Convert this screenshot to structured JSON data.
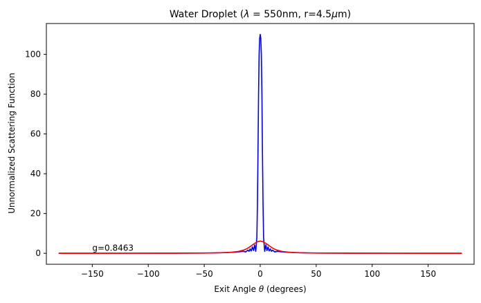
{
  "chart_data": {
    "type": "line",
    "title": "Water Droplet (λ = 550nm, r=4.5μm)",
    "title_parts": {
      "prefix": "Water Droplet (",
      "lambda_symbol": "λ",
      "lambda_value": " = 550nm, r=4.5",
      "mu_symbol": "μ",
      "suffix": "m)"
    },
    "xlabel": "Exit Angle θ (degrees)",
    "xlabel_parts": {
      "prefix": "Exit Angle ",
      "theta_symbol": "θ",
      "suffix": " (degrees)"
    },
    "ylabel": "Unnormalized Scattering Function",
    "xlim": [
      -191,
      191
    ],
    "ylim": [
      -5.5,
      115.5
    ],
    "xticks": [
      -150,
      -100,
      -50,
      0,
      50,
      100,
      150
    ],
    "xtick_labels": [
      "−150",
      "−100",
      "−50",
      "0",
      "50",
      "100",
      "150"
    ],
    "yticks": [
      0,
      20,
      40,
      60,
      80,
      100
    ],
    "ytick_labels": [
      "0",
      "20",
      "40",
      "60",
      "80",
      "100"
    ],
    "grid": false,
    "annotation": {
      "text": "g=0.8463",
      "x": -150,
      "y": 1.2
    },
    "series": [
      {
        "color": "#0000ff",
        "x": [
          -180,
          -150,
          -120,
          -90,
          -60,
          -45,
          -35,
          -28,
          -22,
          -18,
          -15,
          -13,
          -11,
          -10,
          -9,
          -8,
          -7,
          -6,
          -5,
          -4,
          -3,
          -2.5,
          -2,
          -1.5,
          -1,
          -0.5,
          0,
          0.5,
          1,
          1.5,
          2,
          2.5,
          3,
          4,
          5,
          6,
          7,
          8,
          9,
          10,
          11,
          13,
          15,
          18,
          22,
          28,
          35,
          45,
          60,
          90,
          120,
          150,
          180
        ],
        "y": [
          0.05,
          0.05,
          0.06,
          0.08,
          0.12,
          0.18,
          0.3,
          0.45,
          0.6,
          0.8,
          1.0,
          0.7,
          1.6,
          1.0,
          2.2,
          1.2,
          3.2,
          1.4,
          4.2,
          1.0,
          8.0,
          25.0,
          50.0,
          80.0,
          100.0,
          108.0,
          110.0,
          108.0,
          100.0,
          80.0,
          50.0,
          25.0,
          8.0,
          1.0,
          4.2,
          1.4,
          3.2,
          1.2,
          2.2,
          1.0,
          1.6,
          0.7,
          1.0,
          0.8,
          0.6,
          0.45,
          0.3,
          0.18,
          0.12,
          0.08,
          0.06,
          0.05,
          0.05
        ]
      },
      {
        "color": "#ff0000",
        "x": [
          -180,
          -150,
          -120,
          -90,
          -70,
          -50,
          -40,
          -30,
          -25,
          -20,
          -15,
          -12,
          -10,
          -8,
          -6,
          -4,
          -2,
          0,
          2,
          4,
          6,
          8,
          10,
          12,
          15,
          20,
          25,
          30,
          40,
          50,
          70,
          90,
          120,
          150,
          180
        ],
        "y": [
          0.01,
          0.01,
          0.02,
          0.03,
          0.06,
          0.12,
          0.2,
          0.4,
          0.6,
          0.9,
          1.6,
          2.3,
          3.0,
          3.8,
          4.6,
          5.3,
          5.9,
          6.2,
          5.9,
          5.3,
          4.6,
          3.8,
          3.0,
          2.3,
          1.6,
          0.9,
          0.6,
          0.4,
          0.2,
          0.12,
          0.06,
          0.03,
          0.02,
          0.01,
          0.01
        ]
      }
    ]
  }
}
